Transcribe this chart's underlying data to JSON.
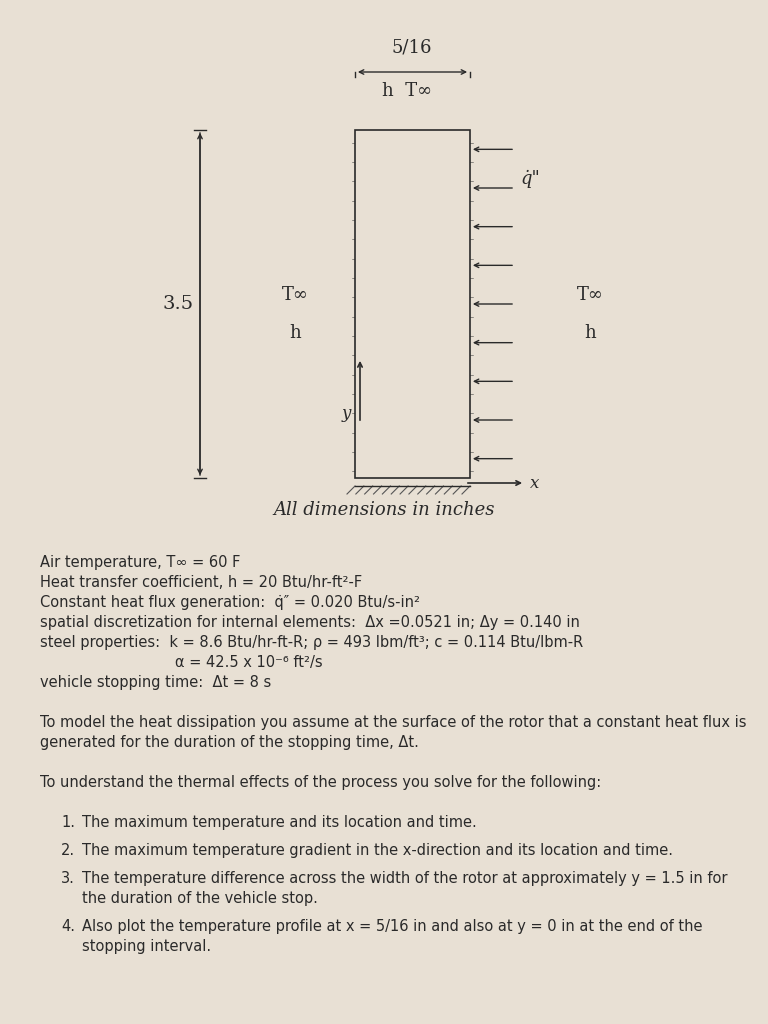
{
  "bg_color": "#e8e0d4",
  "dim_label_516": "5/16",
  "dim_label_35": "3.5",
  "label_hT": "h  T∞",
  "label_T_left": "T∞\n h",
  "label_T_right": "T∞\n h",
  "label_qdot": "q̇\"",
  "label_x": "x",
  "label_y": "y",
  "label_alldim": "All dimensions in inches",
  "line1": "Air temperature, T∞ = 60 F",
  "line2": "Heat transfer coefficient, h = 20 Btu/hr-ft²-F",
  "line3": "Constant heat flux generation:  q̇″ = 0.020 Btu/s-in²",
  "line4": "spatial discretization for internal elements:  Δx =0.0521 in; Δy = 0.140 in",
  "line5": "steel properties:  k = 8.6 Btu/hr-ft-R; ρ = 493 lbm/ft³; c = 0.114 Btu/lbm-R",
  "line6": "α = 42.5 x 10⁻⁶ ft²/s",
  "line7": "vehicle stopping time:  Δt = 8 s",
  "para1a": "To model the heat dissipation you assume at the surface of the rotor that a constant heat flux is",
  "para1b": "generated for the duration of the stopping time, Δt.",
  "para2": "To understand the thermal effects of the process you solve for the following:",
  "item1": "The maximum temperature and its location and time.",
  "item2": "The maximum temperature gradient in the x-direction and its location and time.",
  "item3a": "The temperature difference across the width of the rotor at approximately y = 1.5 in for",
  "item3b": "the duration of the vehicle stop.",
  "item4a": "Also plot the temperature profile at x = 5/16 in and also at y = 0 in at the end of the",
  "item4b": "stopping interval."
}
